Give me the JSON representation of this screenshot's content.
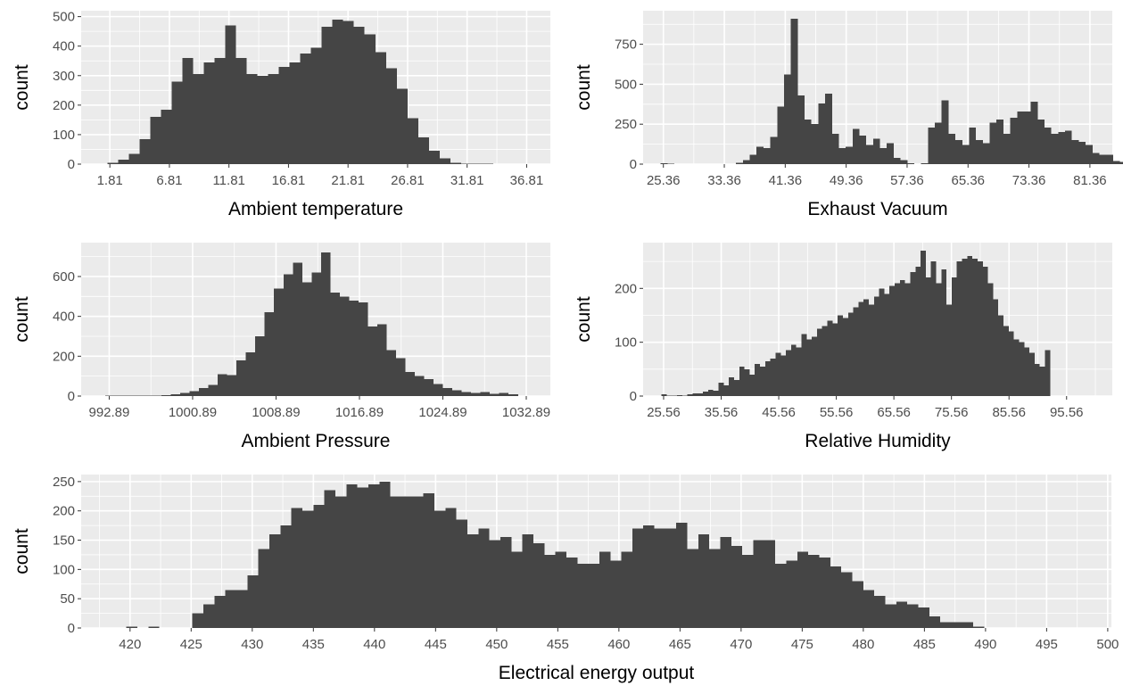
{
  "chart_data": [
    {
      "type": "bar",
      "xlabel": "Ambient temperature",
      "ylabel": "count",
      "x_ticks": [
        1.81,
        6.81,
        11.81,
        16.81,
        21.81,
        26.81,
        31.81,
        36.81
      ],
      "x_tick_labels": [
        "1.81",
        "6.81",
        "11.81",
        "16.81",
        "21.81",
        "26.81",
        "31.81",
        "36.81"
      ],
      "y_ticks": [
        0,
        100,
        200,
        300,
        400,
        500
      ],
      "xlim": [
        -0.6,
        38.8
      ],
      "ylim": [
        0,
        520
      ],
      "bin_width": 0.9,
      "bin_start": 1.6,
      "values": [
        5,
        15,
        35,
        85,
        160,
        185,
        280,
        360,
        305,
        345,
        360,
        470,
        360,
        305,
        300,
        305,
        330,
        345,
        375,
        395,
        465,
        490,
        485,
        465,
        440,
        380,
        325,
        255,
        155,
        90,
        45,
        20,
        5,
        2,
        1,
        1,
        0,
        0
      ],
      "grid": true
    },
    {
      "type": "bar",
      "xlabel": "Exhaust Vacuum",
      "ylabel": "count",
      "x_ticks": [
        25.36,
        33.36,
        41.36,
        49.36,
        57.36,
        65.36,
        73.36,
        81.36
      ],
      "x_tick_labels": [
        "25.36",
        "33.36",
        "41.36",
        "49.36",
        "57.36",
        "65.36",
        "73.36",
        "81.36"
      ],
      "y_ticks": [
        0,
        250,
        500,
        750
      ],
      "xlim": [
        22.7,
        84.3
      ],
      "ylim": [
        0,
        960
      ],
      "bin_width": 0.9,
      "bin_start": 25.0,
      "values": [
        5,
        3,
        0,
        0,
        0,
        0,
        0,
        0,
        0,
        0,
        0,
        8,
        25,
        60,
        110,
        100,
        170,
        360,
        560,
        910,
        430,
        280,
        250,
        380,
        440,
        190,
        100,
        110,
        220,
        180,
        120,
        160,
        100,
        130,
        40,
        25,
        5,
        0,
        5,
        230,
        260,
        400,
        190,
        150,
        120,
        230,
        150,
        130,
        260,
        280,
        190,
        290,
        330,
        330,
        390,
        280,
        230,
        190,
        200,
        210,
        150,
        140,
        120,
        70,
        60,
        60,
        20,
        15,
        5,
        0,
        0
      ],
      "grid": true
    },
    {
      "type": "bar",
      "xlabel": "Ambient Pressure",
      "ylabel": "count",
      "x_ticks": [
        992.89,
        1000.89,
        1008.89,
        1016.89,
        1024.89,
        1032.89
      ],
      "x_tick_labels": [
        "992.89",
        "1000.89",
        "1008.89",
        "1016.89",
        "1024.89",
        "1032.89"
      ],
      "y_ticks": [
        0,
        200,
        400,
        600
      ],
      "xlim": [
        990.2,
        1035.2
      ],
      "ylim": [
        0,
        770
      ],
      "bin_width": 0.9,
      "bin_start": 992.5,
      "values": [
        2,
        2,
        2,
        3,
        3,
        3,
        5,
        10,
        15,
        25,
        40,
        55,
        110,
        105,
        180,
        220,
        300,
        420,
        540,
        610,
        670,
        570,
        620,
        720,
        520,
        500,
        480,
        470,
        350,
        360,
        230,
        190,
        120,
        100,
        85,
        60,
        40,
        30,
        20,
        15,
        20,
        12,
        15,
        10
      ],
      "grid": true
    },
    {
      "type": "bar",
      "xlabel": "Relative Humidity",
      "ylabel": "count",
      "x_ticks": [
        25.56,
        35.56,
        45.56,
        55.56,
        65.56,
        75.56,
        85.56,
        95.56
      ],
      "x_tick_labels": [
        "25.56",
        "35.56",
        "45.56",
        "55.56",
        "65.56",
        "75.56",
        "85.56",
        "95.56"
      ],
      "y_ticks": [
        0,
        100,
        200
      ],
      "xlim": [
        22.0,
        103.5
      ],
      "ylim": [
        0,
        285
      ],
      "bin_width": 0.9,
      "bin_start": 25.2,
      "values": [
        3,
        1,
        1,
        2,
        1,
        3,
        5,
        5,
        8,
        12,
        10,
        25,
        20,
        35,
        30,
        55,
        50,
        40,
        60,
        55,
        65,
        70,
        80,
        75,
        85,
        95,
        90,
        115,
        105,
        110,
        125,
        130,
        140,
        135,
        150,
        145,
        155,
        165,
        175,
        180,
        170,
        185,
        200,
        190,
        205,
        210,
        215,
        210,
        230,
        240,
        270,
        220,
        250,
        210,
        235,
        170,
        220,
        250,
        255,
        260,
        255,
        250,
        240,
        210,
        180,
        150,
        130,
        120,
        105,
        100,
        90,
        80,
        60,
        55,
        85
      ],
      "grid": true
    },
    {
      "type": "bar",
      "xlabel": "Electrical energy output",
      "ylabel": "count",
      "x_ticks": [
        420,
        425,
        430,
        435,
        440,
        445,
        450,
        455,
        460,
        465,
        470,
        475,
        480,
        485,
        490,
        495,
        500
      ],
      "x_tick_labels": [
        "420",
        "425",
        "430",
        "435",
        "440",
        "445",
        "450",
        "455",
        "460",
        "465",
        "470",
        "475",
        "480",
        "485",
        "490",
        "495",
        "500"
      ],
      "y_ticks": [
        0,
        50,
        100,
        150,
        200,
        250
      ],
      "xlim": [
        416.0,
        500.3
      ],
      "ylim": [
        0,
        262
      ],
      "bin_width": 0.9,
      "bin_start": 419.7,
      "values": [
        2,
        0,
        2,
        0,
        0,
        0,
        25,
        40,
        55,
        65,
        65,
        90,
        135,
        160,
        175,
        205,
        200,
        210,
        235,
        225,
        245,
        240,
        245,
        250,
        225,
        225,
        225,
        230,
        200,
        205,
        185,
        160,
        170,
        150,
        155,
        130,
        160,
        145,
        125,
        130,
        120,
        110,
        110,
        130,
        115,
        130,
        170,
        175,
        170,
        170,
        180,
        135,
        160,
        135,
        155,
        140,
        125,
        150,
        150,
        110,
        115,
        130,
        125,
        120,
        105,
        95,
        80,
        65,
        55,
        40,
        45,
        40,
        35,
        20,
        10,
        10,
        10,
        2
      ],
      "grid": true
    }
  ]
}
